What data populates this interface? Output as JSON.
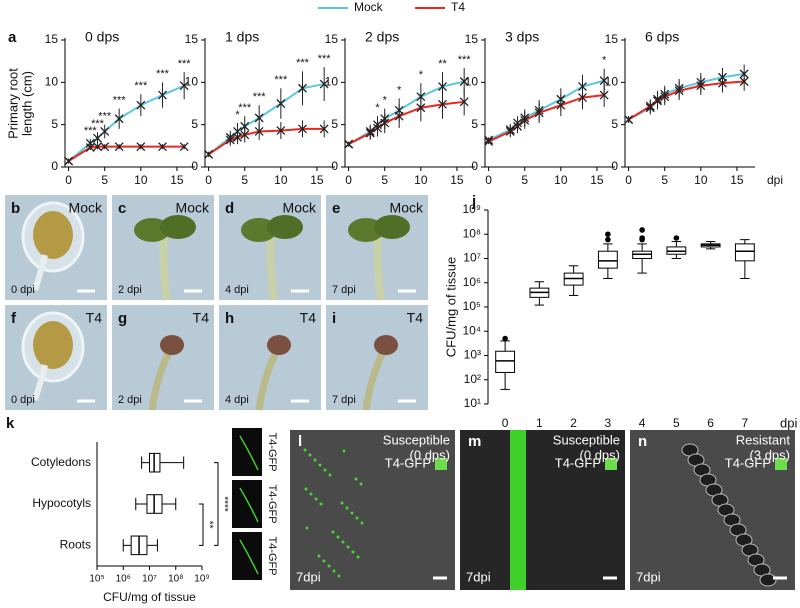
{
  "chart_data": [
    {
      "type": "line",
      "panel": "a",
      "title": "0 dps",
      "ylabel": [
        "Primary root",
        "length (cm)"
      ],
      "x": [
        0,
        3,
        4,
        5,
        7,
        10,
        13,
        16
      ],
      "xlim": [
        -0.5,
        17.5
      ],
      "xticks": [
        0,
        5,
        10,
        15
      ],
      "ylim": [
        0,
        15
      ],
      "yticks": [
        0,
        5,
        10,
        15
      ],
      "series": [
        {
          "name": "Mock",
          "color": "#5bc8e0",
          "values": [
            0.7,
            2.8,
            3.4,
            4.2,
            5.7,
            7.3,
            8.5,
            9.6
          ],
          "errors": [
            0.3,
            0.5,
            0.7,
            0.8,
            1.2,
            1.3,
            1.5,
            1.6
          ]
        },
        {
          "name": "T4",
          "color": "#e8281e",
          "values": [
            0.7,
            2.3,
            2.4,
            2.4,
            2.4,
            2.4,
            2.4,
            2.4
          ],
          "errors": [
            0.2,
            0.3,
            0.3,
            0.3,
            0.3,
            0.3,
            0.3,
            0.3
          ]
        }
      ],
      "significance": [
        null,
        "***",
        "***",
        "***",
        "***",
        "***",
        "***",
        "***"
      ]
    },
    {
      "type": "line",
      "title": "1 dps",
      "x": [
        0,
        3,
        4,
        5,
        7,
        10,
        13,
        16
      ],
      "xlim": [
        -0.5,
        17.5
      ],
      "xticks": [
        0,
        5,
        10,
        15
      ],
      "ylim": [
        0,
        15
      ],
      "yticks": [
        0,
        5,
        10,
        15
      ],
      "series": [
        {
          "name": "Mock",
          "color": "#5bc8e0",
          "values": [
            1.5,
            3.5,
            4.2,
            4.8,
            5.8,
            7.5,
            9.3,
            9.8
          ],
          "errors": [
            0.3,
            0.8,
            1.0,
            1.2,
            1.5,
            1.8,
            2.0,
            2.0
          ]
        },
        {
          "name": "T4",
          "color": "#e8281e",
          "values": [
            1.5,
            3.2,
            3.5,
            3.8,
            4.2,
            4.3,
            4.5,
            4.5
          ],
          "errors": [
            0.3,
            0.7,
            0.8,
            0.9,
            1.0,
            1.0,
            1.0,
            1.0
          ]
        }
      ],
      "significance": [
        null,
        null,
        "*",
        "***",
        "***",
        "***",
        "***",
        "***"
      ]
    },
    {
      "type": "line",
      "title": "2 dps",
      "x": [
        0,
        3,
        4,
        5,
        7,
        10,
        13,
        16
      ],
      "xlim": [
        -0.5,
        17.5
      ],
      "xticks": [
        0,
        5,
        10,
        15
      ],
      "ylim": [
        0,
        15
      ],
      "yticks": [
        0,
        5,
        10,
        15
      ],
      "series": [
        {
          "name": "Mock",
          "color": "#5bc8e0",
          "values": [
            2.7,
            4.2,
            5.0,
            5.7,
            6.7,
            8.3,
            9.5,
            10.1
          ],
          "errors": [
            0.3,
            0.8,
            1.0,
            1.2,
            1.4,
            1.6,
            1.7,
            1.6
          ]
        },
        {
          "name": "T4",
          "color": "#e8281e",
          "values": [
            2.7,
            4.0,
            4.6,
            5.2,
            6.0,
            7.0,
            7.4,
            7.7
          ],
          "errors": [
            0.3,
            0.8,
            1.0,
            1.2,
            1.4,
            1.6,
            1.7,
            1.6
          ]
        }
      ],
      "significance": [
        null,
        null,
        "*",
        "*",
        "*",
        "*",
        "**",
        "***"
      ]
    },
    {
      "type": "line",
      "title": "3 dps",
      "x": [
        0,
        3,
        4,
        5,
        7,
        10,
        13,
        16
      ],
      "xlim": [
        -0.5,
        17.5
      ],
      "xticks": [
        0,
        5,
        10,
        15
      ],
      "ylim": [
        0,
        15
      ],
      "yticks": [
        0,
        5,
        10,
        15
      ],
      "series": [
        {
          "name": "Mock",
          "color": "#5bc8e0",
          "values": [
            3.2,
            4.4,
            5.2,
            5.8,
            6.7,
            8.0,
            9.5,
            10.2
          ],
          "errors": [
            0.3,
            0.7,
            0.8,
            1.0,
            1.2,
            1.3,
            1.4,
            1.4
          ]
        },
        {
          "name": "T4",
          "color": "#e8281e",
          "values": [
            3.0,
            4.2,
            4.8,
            5.5,
            6.4,
            7.3,
            8.2,
            8.5
          ],
          "errors": [
            0.3,
            0.7,
            0.8,
            1.0,
            1.2,
            1.3,
            1.4,
            1.4
          ]
        }
      ],
      "significance": [
        null,
        null,
        null,
        null,
        null,
        null,
        null,
        "*"
      ]
    },
    {
      "type": "line",
      "title": "6 dps",
      "xlabel": "dpi",
      "x": [
        0,
        3,
        4,
        5,
        7,
        10,
        13,
        16
      ],
      "xlim": [
        -0.5,
        17.5
      ],
      "xticks": [
        0,
        5,
        10,
        15
      ],
      "ylim": [
        0,
        15
      ],
      "yticks": [
        0,
        5,
        10,
        15
      ],
      "series": [
        {
          "name": "Mock",
          "color": "#5bc8e0",
          "values": [
            5.6,
            7.0,
            8.0,
            8.6,
            9.3,
            10.0,
            10.6,
            11.0
          ],
          "errors": [
            0.4,
            0.8,
            1.0,
            1.0,
            1.1,
            1.1,
            1.1,
            1.1
          ]
        },
        {
          "name": "T4",
          "color": "#e8281e",
          "values": [
            5.6,
            7.2,
            7.8,
            8.3,
            9.0,
            9.6,
            9.9,
            10.1
          ],
          "errors": [
            0.4,
            0.8,
            1.0,
            1.0,
            1.1,
            1.1,
            1.1,
            1.1
          ]
        }
      ],
      "significance": [
        null,
        null,
        null,
        null,
        null,
        null,
        null,
        null
      ]
    },
    {
      "type": "box",
      "panel": "j",
      "ylabel": "CFU/mg of tissue",
      "xlabel": "dpi",
      "log": true,
      "categories": [
        "0",
        "1",
        "2",
        "3",
        "4",
        "5",
        "6",
        "7"
      ],
      "ylim": [
        10,
        1000000000
      ],
      "yticks": [
        {
          "value": 10,
          "label": "10¹"
        },
        {
          "value": 100,
          "label": "10²"
        },
        {
          "value": 1000,
          "label": "10³"
        },
        {
          "value": 10000,
          "label": "10⁴"
        },
        {
          "value": 100000,
          "label": "10⁵"
        },
        {
          "value": 1000000,
          "label": "10⁶"
        },
        {
          "value": 10000000,
          "label": "10⁷"
        },
        {
          "value": 100000000,
          "label": "10⁸"
        },
        {
          "value": 1000000000,
          "label": "10⁹"
        }
      ],
      "boxes": [
        {
          "low": 40,
          "q1": 200,
          "median": 600,
          "q3": 1500,
          "high": 4000,
          "outliers": [
            5000
          ]
        },
        {
          "low": 120000,
          "q1": 250000,
          "median": 400000,
          "q3": 600000,
          "high": 1100000,
          "outliers": []
        },
        {
          "low": 300000,
          "q1": 800000,
          "median": 1500000,
          "q3": 2500000,
          "high": 5000000,
          "outliers": []
        },
        {
          "low": 1500000,
          "q1": 4000000,
          "median": 8000000,
          "q3": 20000000,
          "high": 40000000,
          "outliers": [
            60000000,
            100000000
          ]
        },
        {
          "low": 2500000,
          "q1": 10000000,
          "median": 15000000,
          "q3": 20000000,
          "high": 40000000,
          "outliers": [
            60000000,
            70000000,
            150000000
          ]
        },
        {
          "low": 10000000,
          "q1": 15000000,
          "median": 20000000,
          "q3": 30000000,
          "high": 50000000,
          "outliers": [
            70000000
          ]
        },
        {
          "low": 25000000,
          "q1": 30000000,
          "median": 35000000,
          "q3": 40000000,
          "high": 50000000,
          "outliers": []
        },
        {
          "low": 1500000,
          "q1": 8000000,
          "median": 20000000,
          "q3": 40000000,
          "high": 60000000,
          "outliers": []
        }
      ]
    },
    {
      "type": "hbox",
      "panel": "k",
      "xlabel": "CFU/mg of tissue",
      "log": true,
      "categories": [
        "Cotyledons",
        "Hypocotyls",
        "Roots"
      ],
      "xlim": [
        100000,
        1000000000
      ],
      "xticks": [
        {
          "value": 100000,
          "label": "10⁵"
        },
        {
          "value": 1000000,
          "label": "10⁶"
        },
        {
          "value": 10000000,
          "label": "10⁷"
        },
        {
          "value": 100000000,
          "label": "10⁸"
        },
        {
          "value": 1000000000,
          "label": "10⁹"
        }
      ],
      "boxes": [
        {
          "low": 5000000,
          "q1": 10000000,
          "median": 15000000,
          "q3": 25000000,
          "high": 200000000
        },
        {
          "low": 3000000,
          "q1": 8000000,
          "median": 15000000,
          "q3": 30000000,
          "high": 100000000
        },
        {
          "low": 1000000,
          "q1": 2000000,
          "median": 4000000,
          "q3": 8000000,
          "high": 20000000
        }
      ],
      "significance": [
        "**",
        "****"
      ]
    }
  ],
  "images": [
    {
      "letter": "b",
      "label": "Mock",
      "time": "0 dpi"
    },
    {
      "letter": "c",
      "label": "Mock",
      "time": "2 dpi"
    },
    {
      "letter": "d",
      "label": "Mock",
      "time": "4 dpi"
    },
    {
      "letter": "e",
      "label": "Mock",
      "time": "7 dpi"
    },
    {
      "letter": "f",
      "label": "T4",
      "time": "0 dpi"
    },
    {
      "letter": "g",
      "label": "T4",
      "time": "2 dpi"
    },
    {
      "letter": "h",
      "label": "T4",
      "time": "4 dpi"
    },
    {
      "letter": "i",
      "label": "T4",
      "time": "7 dpi"
    }
  ],
  "gfp_strips": [
    "T4-GFP",
    "T4-GFP",
    "T4-GFP"
  ],
  "micrographs": [
    {
      "letter": "l",
      "condition": "Susceptible",
      "stage": "(0 dps)",
      "marker": "T4-GFP",
      "time": "7dpi"
    },
    {
      "letter": "m",
      "condition": "Susceptible",
      "stage": "(0 dps)",
      "marker": "T4-GFP",
      "time": "7dpi"
    },
    {
      "letter": "n",
      "condition": "Resistant",
      "stage": "(3 dps)",
      "marker": "T4-GFP",
      "time": "7dpi"
    }
  ]
}
